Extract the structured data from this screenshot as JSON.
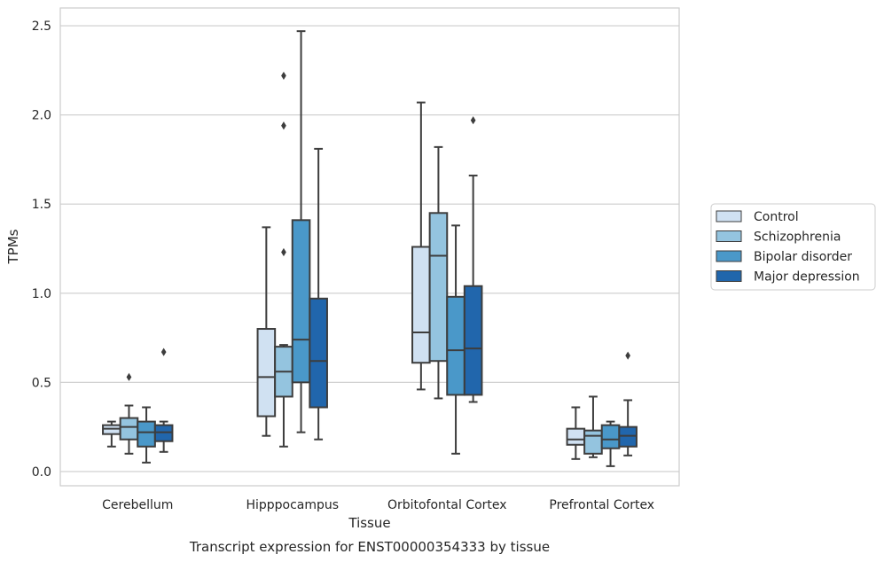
{
  "chart_data": {
    "type": "box",
    "caption": "Transcript expression for ENST00000354333 by tissue",
    "xlabel": "Tissue",
    "ylabel": "TPMs",
    "ylim": [
      -0.08,
      2.6
    ],
    "yticks": [
      0.0,
      0.5,
      1.0,
      1.5,
      2.0,
      2.5
    ],
    "ytick_labels": [
      "0.0",
      "0.5",
      "1.0",
      "1.5",
      "2.0",
      "2.5"
    ],
    "grid": "horizontal",
    "legend_placement": "right",
    "categories": [
      "Cerebellum",
      "Hipppocampus",
      "Orbitofontal Cortex",
      "Prefrontal Cortex"
    ],
    "series": [
      {
        "name": "Control",
        "color": "#d0e1f2",
        "boxes": [
          {
            "whisker_low": 0.14,
            "q1": 0.21,
            "median": 0.24,
            "q3": 0.26,
            "whisker_high": 0.28,
            "outliers": []
          },
          {
            "whisker_low": 0.2,
            "q1": 0.31,
            "median": 0.53,
            "q3": 0.8,
            "whisker_high": 1.37,
            "outliers": []
          },
          {
            "whisker_low": 0.46,
            "q1": 0.61,
            "median": 0.78,
            "q3": 1.26,
            "whisker_high": 2.07,
            "outliers": []
          },
          {
            "whisker_low": 0.07,
            "q1": 0.15,
            "median": 0.18,
            "q3": 0.24,
            "whisker_high": 0.36,
            "outliers": []
          }
        ]
      },
      {
        "name": "Schizophrenia",
        "color": "#94c4df",
        "boxes": [
          {
            "whisker_low": 0.1,
            "q1": 0.18,
            "median": 0.25,
            "q3": 0.3,
            "whisker_high": 0.37,
            "outliers": [
              0.53
            ]
          },
          {
            "whisker_low": 0.14,
            "q1": 0.42,
            "median": 0.56,
            "q3": 0.7,
            "whisker_high": 0.71,
            "outliers": [
              1.23,
              1.94,
              2.22
            ]
          },
          {
            "whisker_low": 0.41,
            "q1": 0.62,
            "median": 1.21,
            "q3": 1.45,
            "whisker_high": 1.82,
            "outliers": []
          },
          {
            "whisker_low": 0.08,
            "q1": 0.1,
            "median": 0.2,
            "q3": 0.23,
            "whisker_high": 0.42,
            "outliers": []
          }
        ]
      },
      {
        "name": "Bipolar disorder",
        "color": "#4a98c9",
        "boxes": [
          {
            "whisker_low": 0.05,
            "q1": 0.14,
            "median": 0.22,
            "q3": 0.28,
            "whisker_high": 0.36,
            "outliers": []
          },
          {
            "whisker_low": 0.22,
            "q1": 0.5,
            "median": 0.74,
            "q3": 1.41,
            "whisker_high": 2.47,
            "outliers": []
          },
          {
            "whisker_low": 0.1,
            "q1": 0.43,
            "median": 0.68,
            "q3": 0.98,
            "whisker_high": 1.38,
            "outliers": []
          },
          {
            "whisker_low": 0.03,
            "q1": 0.13,
            "median": 0.18,
            "q3": 0.26,
            "whisker_high": 0.28,
            "outliers": []
          }
        ]
      },
      {
        "name": "Major depression",
        "color": "#2166ac",
        "boxes": [
          {
            "whisker_low": 0.11,
            "q1": 0.17,
            "median": 0.22,
            "q3": 0.26,
            "whisker_high": 0.28,
            "outliers": [
              0.67
            ]
          },
          {
            "whisker_low": 0.18,
            "q1": 0.36,
            "median": 0.62,
            "q3": 0.97,
            "whisker_high": 1.81,
            "outliers": []
          },
          {
            "whisker_low": 0.39,
            "q1": 0.43,
            "median": 0.69,
            "q3": 1.04,
            "whisker_high": 1.66,
            "outliers": [
              1.97
            ]
          },
          {
            "whisker_low": 0.09,
            "q1": 0.14,
            "median": 0.2,
            "q3": 0.25,
            "whisker_high": 0.4,
            "outliers": [
              0.65
            ]
          }
        ]
      }
    ]
  }
}
